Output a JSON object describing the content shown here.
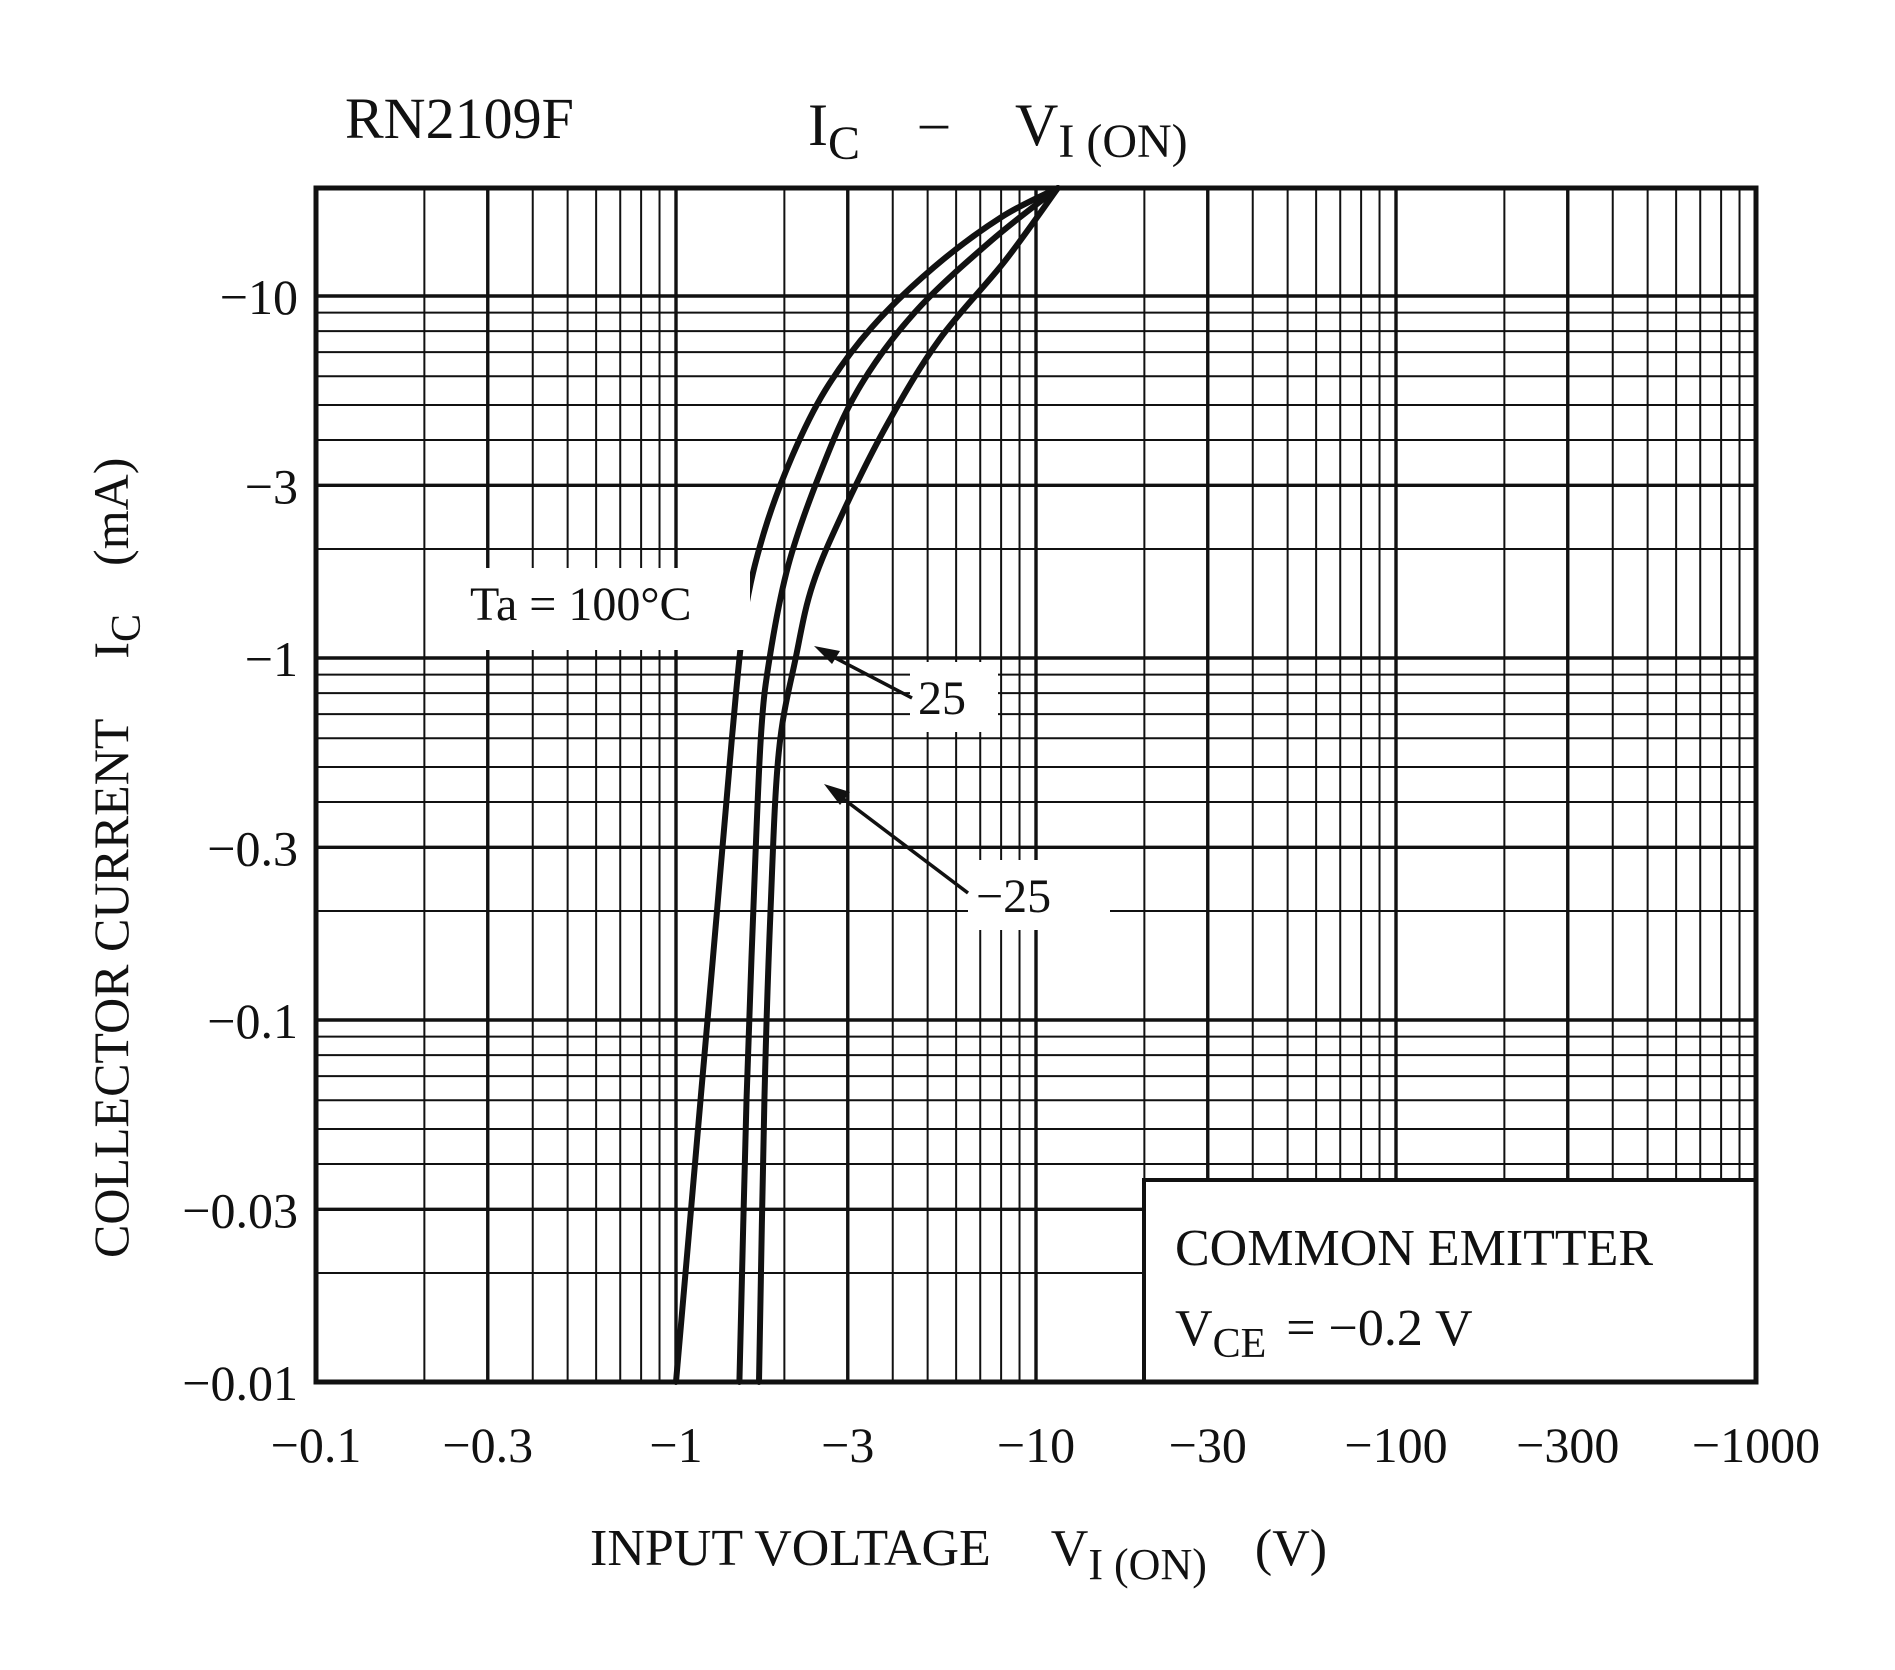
{
  "chart_data": {
    "type": "line",
    "title": {
      "part_number": "RN2109F",
      "main": "I",
      "main_sub": "C",
      "sep": "–",
      "second": "V",
      "second_sub": "I (ON)"
    },
    "xlabel": {
      "text": "INPUT VOLTAGE",
      "symbol": "V",
      "symbol_sub": "I (ON)",
      "unit": "(V)"
    },
    "ylabel": {
      "text": "COLLECTOR CURRENT",
      "symbol": "I",
      "symbol_sub": "C",
      "unit": "(mA)"
    },
    "xscale": "log",
    "yscale": "log",
    "xlim": [
      -0.1,
      -1000
    ],
    "ylim": [
      -0.01,
      -20
    ],
    "x_ticks": [
      {
        "value": -0.1,
        "label": "−0.1"
      },
      {
        "value": -0.3,
        "label": "−0.3"
      },
      {
        "value": -1,
        "label": "−1"
      },
      {
        "value": -3,
        "label": "−3"
      },
      {
        "value": -10,
        "label": "−10"
      },
      {
        "value": -30,
        "label": "−30"
      },
      {
        "value": -100,
        "label": "−100"
      },
      {
        "value": -300,
        "label": "−300"
      },
      {
        "value": -1000,
        "label": "−1000"
      }
    ],
    "y_ticks": [
      {
        "value": -0.01,
        "label": "−0.01"
      },
      {
        "value": -0.03,
        "label": "−0.03"
      },
      {
        "value": -0.1,
        "label": "−0.1"
      },
      {
        "value": -0.3,
        "label": "−0.3"
      },
      {
        "value": -1,
        "label": "−1"
      },
      {
        "value": -3,
        "label": "−3"
      },
      {
        "value": -10,
        "label": "−10"
      }
    ],
    "grid": true,
    "series": [
      {
        "name": "Ta = 100°C",
        "label": "Ta = 100°C",
        "points": [
          [
            -1.0,
            -0.01
          ],
          [
            -1.17,
            -0.06
          ],
          [
            -1.3,
            -0.2
          ],
          [
            -1.43,
            -0.6
          ],
          [
            -1.55,
            -1.3
          ],
          [
            -1.75,
            -2.2
          ],
          [
            -2.1,
            -3.6
          ],
          [
            -2.6,
            -5.5
          ],
          [
            -3.5,
            -8.2
          ],
          [
            -5.2,
            -12
          ],
          [
            -8.0,
            -16.5
          ],
          [
            -11.5,
            -20
          ]
        ]
      },
      {
        "name": "25",
        "label": "25",
        "points": [
          [
            -1.5,
            -0.01
          ],
          [
            -1.57,
            -0.06
          ],
          [
            -1.64,
            -0.2
          ],
          [
            -1.72,
            -0.6
          ],
          [
            -1.82,
            -1.0
          ],
          [
            -2.05,
            -1.8
          ],
          [
            -2.5,
            -3.2
          ],
          [
            -3.2,
            -5.5
          ],
          [
            -4.6,
            -9.0
          ],
          [
            -7.5,
            -14.2
          ],
          [
            -11.5,
            -20
          ]
        ]
      },
      {
        "name": "−25",
        "label": "−25",
        "points": [
          [
            -1.7,
            -0.01
          ],
          [
            -1.76,
            -0.06
          ],
          [
            -1.83,
            -0.2
          ],
          [
            -1.93,
            -0.55
          ],
          [
            -2.15,
            -1.0
          ],
          [
            -2.4,
            -1.6
          ],
          [
            -2.95,
            -2.6
          ],
          [
            -3.9,
            -4.5
          ],
          [
            -5.4,
            -7.6
          ],
          [
            -8.2,
            -12.5
          ],
          [
            -11.5,
            -20
          ]
        ]
      }
    ],
    "annotations": {
      "conditions_line1": "COMMON EMITTER",
      "conditions_v": "V",
      "conditions_sub": "CE",
      "conditions_value": "= −0.2 V"
    }
  }
}
